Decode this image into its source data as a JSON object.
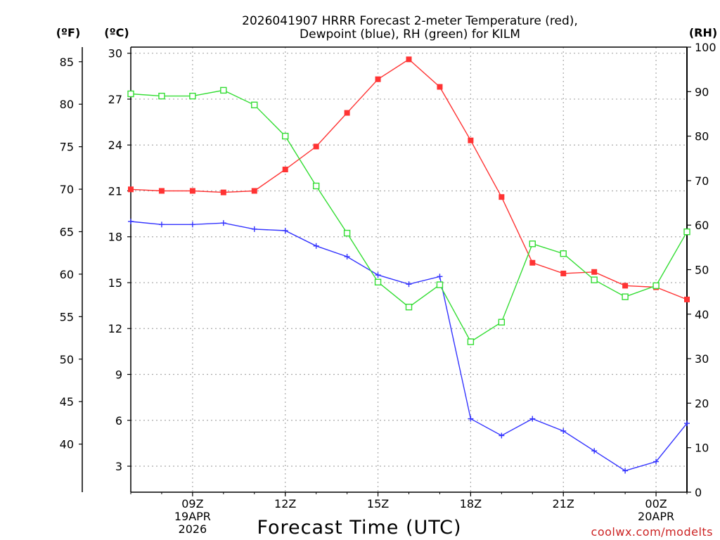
{
  "chart_data": {
    "type": "line",
    "title_line1": "2026041907 HRRR Forecast 2-meter Temperature (red),",
    "title_line2": "Dewpoint (blue), RH (green) for KILM",
    "xlabel": "Forecast Time (UTC)",
    "watermark": "coolwx.com/modelts",
    "unit_f": "(ºF)",
    "unit_c": "(ºC)",
    "unit_rh": "(RH)",
    "x_hours": [
      7,
      8,
      9,
      10,
      11,
      12,
      13,
      14,
      15,
      16,
      17,
      18,
      19,
      20,
      21,
      22,
      23,
      24,
      25
    ],
    "xlim": [
      7,
      25
    ],
    "x_ticks": [
      {
        "hour": 9,
        "lines": [
          "09Z",
          "19APR",
          "2026"
        ]
      },
      {
        "hour": 12,
        "lines": [
          "12Z"
        ]
      },
      {
        "hour": 15,
        "lines": [
          "15Z"
        ]
      },
      {
        "hour": 18,
        "lines": [
          "18Z"
        ]
      },
      {
        "hour": 21,
        "lines": [
          "21Z"
        ]
      },
      {
        "hour": 24,
        "lines": [
          "00Z",
          "20APR"
        ]
      }
    ],
    "ylim_c": [
      1.3,
      30.4
    ],
    "c_ticks": [
      "3",
      "6",
      "9",
      "12",
      "15",
      "18",
      "21",
      "24",
      "27",
      "30"
    ],
    "f_ticks": [
      "40",
      "45",
      "50",
      "55",
      "60",
      "65",
      "70",
      "75",
      "80",
      "85"
    ],
    "rh_ticks": [
      "0",
      "10",
      "20",
      "30",
      "40",
      "50",
      "60",
      "70",
      "80",
      "90",
      "100"
    ],
    "ylim_rh": [
      0,
      100
    ],
    "series": [
      {
        "name": "Temperature",
        "unit": "C",
        "color": "#ff3333",
        "marker": "filled-square",
        "values": [
          21.1,
          21.0,
          21.0,
          20.9,
          21.0,
          22.4,
          23.9,
          26.1,
          28.3,
          29.6,
          27.8,
          24.3,
          20.6,
          16.3,
          15.6,
          15.7,
          14.8,
          14.7,
          13.9
        ]
      },
      {
        "name": "Dewpoint",
        "unit": "C",
        "color": "#3333ff",
        "marker": "plus",
        "values": [
          19.0,
          18.8,
          18.8,
          18.9,
          18.5,
          18.4,
          17.4,
          16.7,
          15.5,
          14.9,
          15.4,
          6.1,
          5.0,
          6.1,
          5.3,
          4.0,
          2.7,
          3.3,
          5.8
        ]
      },
      {
        "name": "RH",
        "unit": "%",
        "color": "#33dd33",
        "marker": "open-square",
        "values": [
          89.5,
          89.0,
          89.0,
          90.3,
          87.0,
          80.0,
          68.8,
          58.2,
          47.2,
          41.6,
          46.6,
          33.8,
          38.2,
          55.8,
          53.6,
          47.7,
          43.9,
          46.4,
          58.5
        ]
      }
    ]
  }
}
